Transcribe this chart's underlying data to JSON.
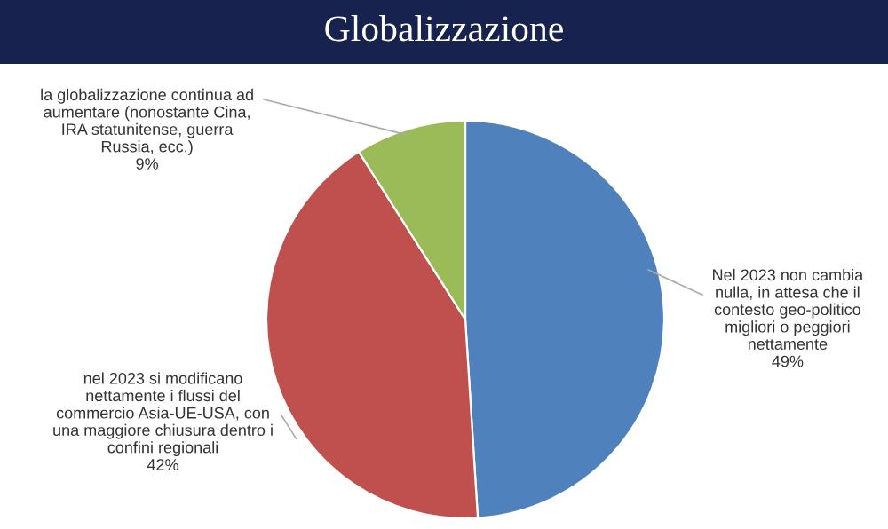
{
  "chart_data": {
    "type": "pie",
    "title": "Globalizzazione",
    "categories": [
      "Nel 2023 non cambia\nnulla, in attesa che il\ncontesto geo-politico\nmigliori o peggiori\nnettamente",
      "nel 2023 si modificano\nnettamente i flussi del\ncommercio Asia-UE-USA, con\nuna maggiore chiusura dentro i\nconfini regionali",
      "la globalizzazione continua ad\naumentare (nonostante Cina,\nIRA statunitense, guerra\nRussia, ecc.)"
    ],
    "values": [
      49,
      42,
      9
    ],
    "value_labels": [
      "49%",
      "42%",
      "9%"
    ],
    "colors": [
      "#4f81bd",
      "#c0504d",
      "#9bbb59"
    ]
  }
}
